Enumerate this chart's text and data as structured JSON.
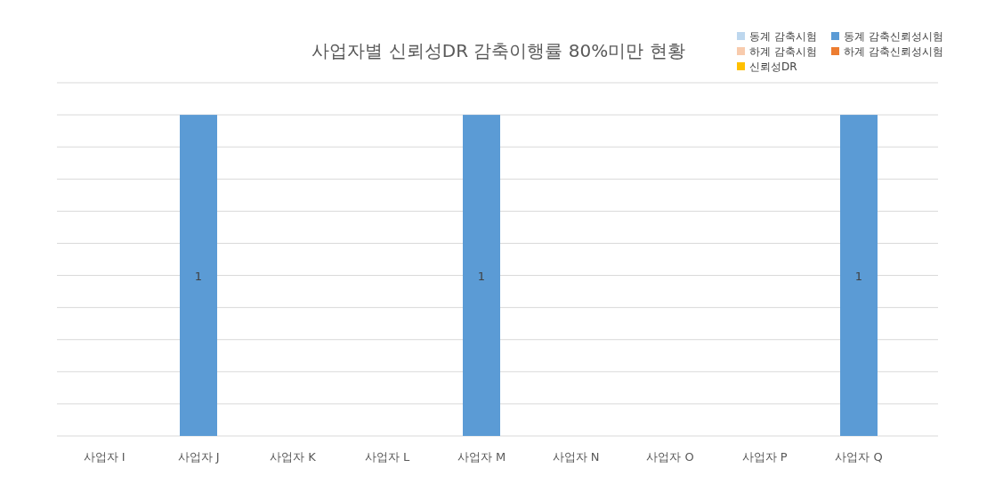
{
  "chart_data": {
    "type": "bar",
    "title": "사업자별 신뢰성DR 감축이행률 80%미만 현황",
    "categories": [
      "사업자 I",
      "사업자 J",
      "사업자 K",
      "사업자 L",
      "사업자 M",
      "사업자 N",
      "사업자 O",
      "사업자 P",
      "사업자 Q"
    ],
    "series": [
      {
        "name": "동계 감축시험",
        "color": "#bdd7ee",
        "values": [
          null,
          null,
          null,
          null,
          null,
          null,
          null,
          null,
          null
        ]
      },
      {
        "name": "동계 감축신뢰성시험",
        "color": "#5b9bd5",
        "values": [
          null,
          1,
          null,
          null,
          1,
          null,
          null,
          null,
          1
        ]
      },
      {
        "name": "하계 감축시험",
        "color": "#f8cbad",
        "values": [
          null,
          null,
          null,
          null,
          null,
          null,
          null,
          null,
          null
        ]
      },
      {
        "name": "하계 감축신뢰성시험",
        "color": "#ed7d31",
        "values": [
          null,
          null,
          null,
          null,
          null,
          null,
          null,
          null,
          null
        ]
      },
      {
        "name": "신뢰성DR",
        "color": "#ffc000",
        "values": [
          null,
          null,
          null,
          null,
          null,
          null,
          null,
          null,
          null
        ]
      }
    ],
    "ylim": [
      0,
      1.1
    ],
    "yticks": [
      {
        "value": 0,
        "label": null
      },
      {
        "value": 0.1,
        "label": null
      },
      {
        "value": 0.2,
        "label": null
      },
      {
        "value": 0.3,
        "label": null
      },
      {
        "value": 0.4,
        "label": null
      },
      {
        "value": 0.5,
        "label": null
      },
      {
        "value": 0.6,
        "label": null
      },
      {
        "value": 0.7,
        "label": null
      },
      {
        "value": 0.8,
        "label": null
      },
      {
        "value": 0.9,
        "label": null
      },
      {
        "value": 1,
        "label": null
      },
      {
        "value": 1.1,
        "label": null
      }
    ],
    "grid": "y",
    "legend": "top right",
    "data_labels": true
  }
}
